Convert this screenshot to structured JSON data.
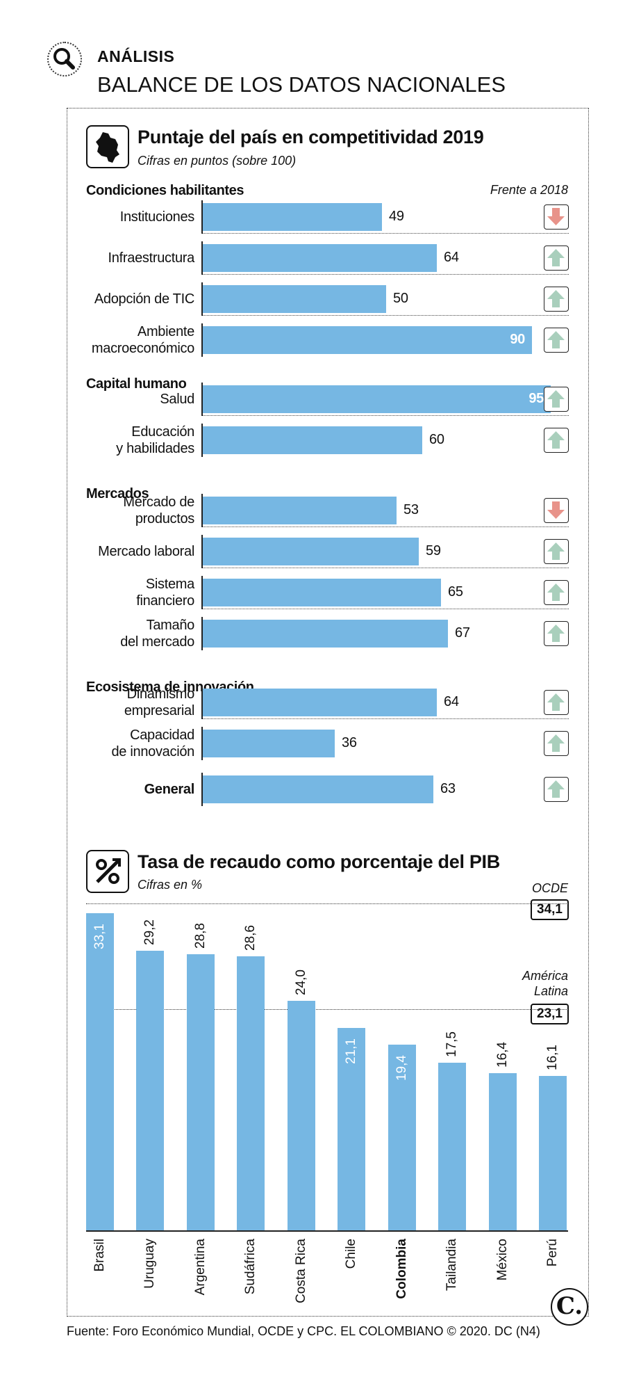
{
  "header": {
    "eyebrow": "ANÁLISIS",
    "headline": "BALANCE DE LOS DATOS NACIONALES"
  },
  "competitiveness": {
    "title": "Puntaje del país en competitividad 2019",
    "subtitle": "Cifras en puntos (sobre 100)",
    "comparison_label": "Frente a 2018",
    "categories": {
      "c1": "Condiciones habilitantes",
      "c2": "Capital humano",
      "c3": "Mercados",
      "c4": "Ecosistema de innovación"
    },
    "general_label": "General"
  },
  "tax": {
    "title": "Tasa de recaudo como porcentaje del PIB",
    "subtitle": "Cifras en %",
    "ref_ocde_name": "OCDE",
    "ref_ocde_value": "34,1",
    "ref_latam_name_1": "América",
    "ref_latam_name_2": "Latina",
    "ref_latam_value": "23,1"
  },
  "footer": {
    "source": "Fuente: Foro Económico Mundial, OCDE y CPC. EL COLOMBIANO © 2020. DC (N4)",
    "logo": "C."
  },
  "colors": {
    "bar": "#76b7e3",
    "up": "#a9cfbc",
    "down": "#e8938a"
  },
  "chart_data": [
    {
      "type": "bar",
      "orientation": "horizontal",
      "title": "Puntaje del país en competitividad 2019",
      "subtitle": "Cifras en puntos (sobre 100)",
      "xlim": [
        0,
        100
      ],
      "rows": [
        {
          "label": "Instituciones",
          "value": 49,
          "display": "49",
          "group": "Condiciones habilitantes",
          "vs2018": "down"
        },
        {
          "label": "Infraestructura",
          "value": 64,
          "display": "64",
          "group": "Condiciones habilitantes",
          "vs2018": "up"
        },
        {
          "label": "Adopción de TIC",
          "value": 50,
          "display": "50",
          "group": "Condiciones habilitantes",
          "vs2018": "up"
        },
        {
          "label": "Ambiente macroeconómico",
          "value": 90,
          "display": "90",
          "group": "Condiciones habilitantes",
          "vs2018": "up"
        },
        {
          "label": "Salud",
          "value": 95,
          "display": "95",
          "group": "Capital humano",
          "vs2018": "up"
        },
        {
          "label": "Educación y habilidades",
          "value": 60,
          "display": "60",
          "group": "Capital humano",
          "vs2018": "up"
        },
        {
          "label": "Mercado de productos",
          "value": 53,
          "display": "53",
          "group": "Mercados",
          "vs2018": "down"
        },
        {
          "label": "Mercado laboral",
          "value": 59,
          "display": "59",
          "group": "Mercados",
          "vs2018": "up"
        },
        {
          "label": "Sistema financiero",
          "value": 65,
          "display": "65",
          "group": "Mercados",
          "vs2018": "up"
        },
        {
          "label": "Tamaño del mercado",
          "value": 67,
          "display": "67",
          "group": "Mercados",
          "vs2018": "up"
        },
        {
          "label": "Dinamismo empresarial",
          "value": 64,
          "display": "64",
          "group": "Ecosistema de innovación",
          "vs2018": "up"
        },
        {
          "label": "Capacidad de innovación",
          "value": 36,
          "display": "36",
          "group": "Ecosistema de innovación",
          "vs2018": "up"
        },
        {
          "label": "General",
          "value": 63,
          "display": "63",
          "group": "",
          "vs2018": "up"
        }
      ]
    },
    {
      "type": "bar",
      "orientation": "vertical",
      "title": "Tasa de recaudo como porcentaje del PIB",
      "subtitle": "Cifras en %",
      "ylim": [
        0,
        35
      ],
      "categories": [
        "Brasil",
        "Uruguay",
        "Argentina",
        "Sudáfrica",
        "Costa Rica",
        "Chile",
        "Colombia",
        "Tailandia",
        "México",
        "Perú"
      ],
      "values": [
        33.1,
        29.2,
        28.8,
        28.6,
        24.0,
        21.1,
        19.4,
        17.5,
        16.4,
        16.1
      ],
      "labels": [
        "33,1",
        "29,2",
        "28,8",
        "28,6",
        "24,0",
        "21,1",
        "19,4",
        "17,5",
        "16,4",
        "16,1"
      ],
      "highlight": "Colombia",
      "reference_lines": [
        {
          "name": "OCDE",
          "value": 34.1
        },
        {
          "name": "América Latina",
          "value": 23.1
        }
      ]
    }
  ]
}
